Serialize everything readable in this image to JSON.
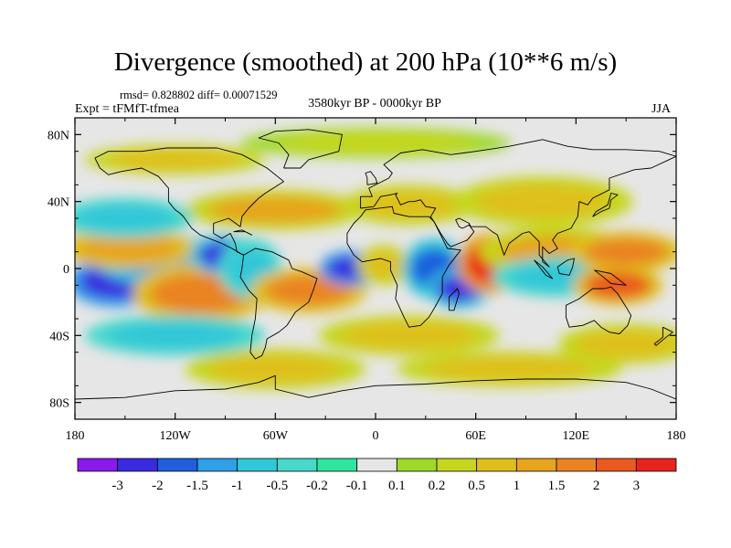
{
  "title": "Divergence (smoothed) at 200 hPa (10**6 m/s)",
  "stats": "rmsd= 0.828802 diff= 0.00071529",
  "experiment": "Expt = tFMfT-tfmea",
  "period": "3580kyr BP - 0000kyr BP",
  "season": "JJA",
  "axes": {
    "y_ticks": [
      {
        "label": "80N",
        "lat": 80
      },
      {
        "label": "40N",
        "lat": 40
      },
      {
        "label": "0",
        "lat": 0
      },
      {
        "label": "40S",
        "lat": -40
      },
      {
        "label": "80S",
        "lat": -80
      }
    ],
    "x_ticks": [
      {
        "label": "180",
        "lon": -180
      },
      {
        "label": "120W",
        "lon": -120
      },
      {
        "label": "60W",
        "lon": -60
      },
      {
        "label": "0",
        "lon": 0
      },
      {
        "label": "60E",
        "lon": 60
      },
      {
        "label": "120E",
        "lon": 120
      },
      {
        "label": "180",
        "lon": 180
      }
    ],
    "lat_range": [
      -90,
      90
    ],
    "lon_range": [
      -180,
      180
    ]
  },
  "colorbar": {
    "colors": [
      "#8a1aec",
      "#3a2be0",
      "#1f5fde",
      "#2f9fe8",
      "#30c7d8",
      "#47d8cc",
      "#2ee6a0",
      "#e6e6e6",
      "#9ed92a",
      "#c6d61e",
      "#dfc01a",
      "#e7a41c",
      "#ea8320",
      "#ea5a1e",
      "#e8231c"
    ],
    "labels": [
      "-3",
      "-2",
      "-1.5",
      "-1",
      "-0.5",
      "-0.2",
      "-0.1",
      "0.1",
      "0.2",
      "0.5",
      "1",
      "1.5",
      "2",
      "3"
    ]
  },
  "field_blobs": [
    {
      "lon": -155,
      "lat": -8,
      "rl": 22,
      "rt": 10,
      "v": -2.6
    },
    {
      "lon": -128,
      "lat": 5,
      "rl": 30,
      "rt": 10,
      "v": -1.2
    },
    {
      "lon": -148,
      "lat": 12,
      "rl": 30,
      "rt": 8,
      "v": 1.4
    },
    {
      "lon": -105,
      "lat": -15,
      "rl": 30,
      "rt": 12,
      "v": 1.6
    },
    {
      "lon": -92,
      "lat": 8,
      "rl": 14,
      "rt": 8,
      "v": -2.2
    },
    {
      "lon": -75,
      "lat": 0,
      "rl": 14,
      "rt": 12,
      "v": -0.9
    },
    {
      "lon": -40,
      "lat": -13,
      "rl": 26,
      "rt": 9,
      "v": 1.7
    },
    {
      "lon": -15,
      "lat": 0,
      "rl": 14,
      "rt": 7,
      "v": -3.0
    },
    {
      "lon": 5,
      "lat": 2,
      "rl": 12,
      "rt": 8,
      "v": 0.6
    },
    {
      "lon": 35,
      "lat": 0,
      "rl": 14,
      "rt": 12,
      "v": -1.8
    },
    {
      "lon": 50,
      "lat": -12,
      "rl": 14,
      "rt": 8,
      "v": -2.2
    },
    {
      "lon": 68,
      "lat": 3,
      "rl": 14,
      "rt": 12,
      "v": 3.0
    },
    {
      "lon": 108,
      "lat": 10,
      "rl": 34,
      "rt": 10,
      "v": 1.0
    },
    {
      "lon": 110,
      "lat": -5,
      "rl": 30,
      "rt": 8,
      "v": -1.0
    },
    {
      "lon": 150,
      "lat": 10,
      "rl": 25,
      "rt": 8,
      "v": 1.5
    },
    {
      "lon": 145,
      "lat": -10,
      "rl": 20,
      "rt": 8,
      "v": 2.0
    },
    {
      "lon": -60,
      "lat": 35,
      "rl": 40,
      "rt": 8,
      "v": 1.0
    },
    {
      "lon": 20,
      "lat": 38,
      "rl": 30,
      "rt": 8,
      "v": 0.8
    },
    {
      "lon": 100,
      "lat": 40,
      "rl": 40,
      "rt": 10,
      "v": 0.8
    },
    {
      "lon": -150,
      "lat": 30,
      "rl": 30,
      "rt": 8,
      "v": -1.0
    },
    {
      "lon": -120,
      "lat": -40,
      "rl": 40,
      "rt": 8,
      "v": -0.8
    },
    {
      "lon": 20,
      "lat": -40,
      "rl": 40,
      "rt": 8,
      "v": 0.9
    },
    {
      "lon": 150,
      "lat": -45,
      "rl": 30,
      "rt": 8,
      "v": 0.8
    },
    {
      "lon": -60,
      "lat": -60,
      "rl": 40,
      "rt": 8,
      "v": 0.5
    },
    {
      "lon": 80,
      "lat": -60,
      "rl": 50,
      "rt": 7,
      "v": 0.5
    },
    {
      "lon": 0,
      "lat": 75,
      "rl": 60,
      "rt": 6,
      "v": 0.4
    },
    {
      "lon": -120,
      "lat": 65,
      "rl": 40,
      "rt": 6,
      "v": 0.6
    }
  ]
}
